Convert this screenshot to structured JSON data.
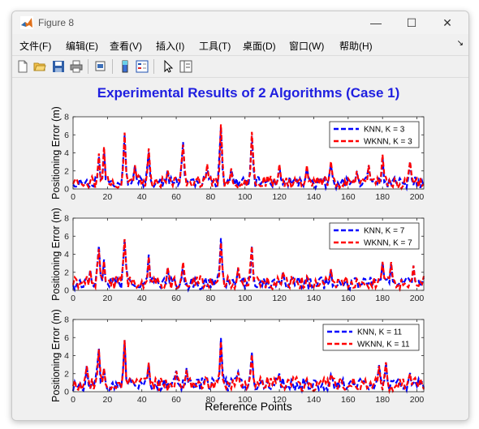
{
  "window": {
    "title": "Figure 8"
  },
  "menu": [
    "文件(F)",
    "编辑(E)",
    "查看(V)",
    "插入(I)",
    "工具(T)",
    "桌面(D)",
    "窗口(W)",
    "帮助(H)"
  ],
  "toolbar": [
    "new-icon",
    "open-icon",
    "save-icon",
    "print-icon",
    "print-preview-icon",
    "colorbar-icon",
    "legend-icon",
    "pointer-icon",
    "plot-tools-icon"
  ],
  "figure": {
    "title": "Experimental Results of 2 Algorithms (Case 1)",
    "xlabel": "Reference Points",
    "title_color": "#1f1fe0"
  },
  "chart_data": [
    {
      "type": "line",
      "ylabel": "Positioning Error (m)",
      "xlim": [
        0,
        204
      ],
      "ylim": [
        0,
        8
      ],
      "xticks": [
        0,
        20,
        40,
        60,
        80,
        100,
        120,
        140,
        160,
        180,
        200
      ],
      "yticks": [
        0,
        2,
        4,
        6,
        8
      ],
      "legend_position": "top-right",
      "peaks": [
        [
          15,
          3.8
        ],
        [
          18,
          4.6
        ],
        [
          30,
          6.0
        ],
        [
          36,
          2.6
        ],
        [
          44,
          4.2
        ],
        [
          55,
          2.0
        ],
        [
          64,
          5.0
        ],
        [
          78,
          2.6
        ],
        [
          86,
          6.9
        ],
        [
          92,
          2.2
        ],
        [
          104,
          5.8
        ],
        [
          120,
          2.6
        ],
        [
          136,
          2.4
        ],
        [
          150,
          2.8
        ],
        [
          165,
          1.8
        ],
        [
          172,
          2.6
        ],
        [
          180,
          3.6
        ],
        [
          196,
          3.1
        ]
      ],
      "series": [
        {
          "name": "KNN, K = 3",
          "color": "#0000ff",
          "seed": 11,
          "base": 0.9,
          "scale": 1.0
        },
        {
          "name": "WKNN, K = 3",
          "color": "#ff0000",
          "seed": 23,
          "base": 1.0,
          "scale": 1.05
        }
      ]
    },
    {
      "type": "line",
      "ylabel": "Positioning Error (m)",
      "xlim": [
        0,
        204
      ],
      "ylim": [
        0,
        8
      ],
      "xticks": [
        0,
        20,
        40,
        60,
        80,
        100,
        120,
        140,
        160,
        180,
        200
      ],
      "yticks": [
        0,
        2,
        4,
        6,
        8
      ],
      "legend_position": "top-right",
      "peaks": [
        [
          10,
          2.3
        ],
        [
          15,
          4.8
        ],
        [
          18,
          3.3
        ],
        [
          30,
          5.6
        ],
        [
          44,
          3.8
        ],
        [
          55,
          2.4
        ],
        [
          64,
          3.0
        ],
        [
          86,
          5.6
        ],
        [
          96,
          2.4
        ],
        [
          104,
          5.1
        ],
        [
          122,
          2.0
        ],
        [
          150,
          2.2
        ],
        [
          180,
          3.1
        ],
        [
          185,
          3.0
        ],
        [
          198,
          2.8
        ]
      ],
      "series": [
        {
          "name": "KNN, K = 7",
          "color": "#0000ff",
          "seed": 37,
          "base": 1.0,
          "scale": 1.0
        },
        {
          "name": "WKNN, K = 7",
          "color": "#ff0000",
          "seed": 41,
          "base": 1.05,
          "scale": 1.02
        }
      ]
    },
    {
      "type": "line",
      "ylabel": "Positioning Error (m)",
      "xlim": [
        0,
        204
      ],
      "ylim": [
        0,
        8
      ],
      "xticks": [
        0,
        20,
        40,
        60,
        80,
        100,
        120,
        140,
        160,
        180,
        200
      ],
      "yticks": [
        0,
        2,
        4,
        6,
        8
      ],
      "legend_position": "top-right",
      "peaks": [
        [
          8,
          2.8
        ],
        [
          15,
          4.9
        ],
        [
          18,
          2.5
        ],
        [
          30,
          5.6
        ],
        [
          44,
          3.3
        ],
        [
          60,
          2.3
        ],
        [
          66,
          2.6
        ],
        [
          86,
          5.9
        ],
        [
          96,
          2.2
        ],
        [
          104,
          4.2
        ],
        [
          120,
          2.0
        ],
        [
          150,
          2.0
        ],
        [
          178,
          3.0
        ],
        [
          182,
          3.1
        ],
        [
          196,
          2.0
        ]
      ],
      "series": [
        {
          "name": "KNN, K = 11",
          "color": "#0000ff",
          "seed": 53,
          "base": 1.05,
          "scale": 1.0
        },
        {
          "name": "WKNN, K = 11",
          "color": "#ff0000",
          "seed": 67,
          "base": 1.1,
          "scale": 1.0
        }
      ]
    }
  ]
}
